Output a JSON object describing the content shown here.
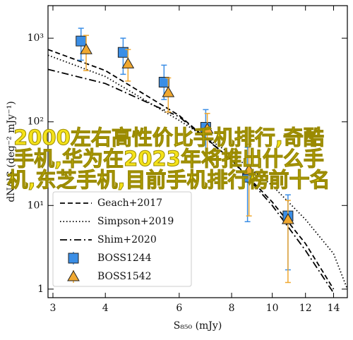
{
  "chart_data": {
    "type": "scatter",
    "xlabel": "S₈₅₀ (mJy)",
    "ylabel": "dN/dS (deg⁻² mJy⁻¹)",
    "xscale": "log",
    "yscale": "log",
    "xlim": [
      2.92,
      15.1
    ],
    "ylim": [
      0.79,
      2450
    ],
    "xticks": [
      3,
      4,
      6,
      8,
      10,
      12,
      14
    ],
    "yticks": [
      1,
      {
        "value": 10,
        "label": "10¹"
      },
      {
        "value": 100,
        "label": "10²"
      },
      {
        "value": 1000,
        "label": "10³"
      }
    ],
    "legend": "lower left",
    "lines": [
      {
        "name": "Geach+2017",
        "color": "#000000",
        "style": "dashed",
        "x": [
          2.92,
          4,
          6,
          8,
          10,
          12,
          14
        ],
        "values": [
          732,
          410,
          119,
          35,
          11,
          3.5,
          1
        ]
      },
      {
        "name": "Simpson+2019",
        "color": "#000000",
        "style": "dotted",
        "x": [
          2.92,
          4,
          6,
          8,
          10,
          12,
          14,
          15.1
        ],
        "values": [
          626,
          348,
          104,
          41,
          17.3,
          6.8,
          2.65,
          1
        ]
      },
      {
        "name": "Shim+2020",
        "color": "#000000",
        "style": "dashdot",
        "x": [
          2.92,
          4,
          6,
          8,
          10,
          12,
          14
        ],
        "values": [
          424,
          287,
          115,
          35,
          10,
          2.9,
          0.9
        ]
      }
    ],
    "series": [
      {
        "name": "BOSS1244",
        "marker": "square",
        "color": "#3a8ee6",
        "x": [
          3.5,
          4.41,
          5.52,
          6.94,
          8.73,
          10.9
        ],
        "values": [
          925,
          677,
          298,
          86,
          21.8,
          7.5
        ],
        "lower": [
          546,
          370,
          185,
          43,
          6.4,
          1.7
        ],
        "upper": [
          1315,
          1000,
          476,
          140,
          49.5,
          13.4
        ]
      },
      {
        "name": "BOSS1542",
        "marker": "triangle",
        "color": "#f0a830",
        "x": [
          3.6,
          4.53,
          5.65,
          7.0,
          8.8,
          10.9
        ],
        "values": [
          732,
          495,
          224,
          82,
          26.5,
          6.8
        ],
        "lower": [
          410,
          307,
          131,
          43,
          7.5,
          1.2
        ],
        "upper": [
          1080,
          732,
          335,
          126,
          54,
          11.5
        ]
      }
    ]
  },
  "overlay_text": "2000左右高性价比手机排行,奇酷手机,华为在2023年将推出什么手机,东芝手机,目前手机排行榜前十名"
}
